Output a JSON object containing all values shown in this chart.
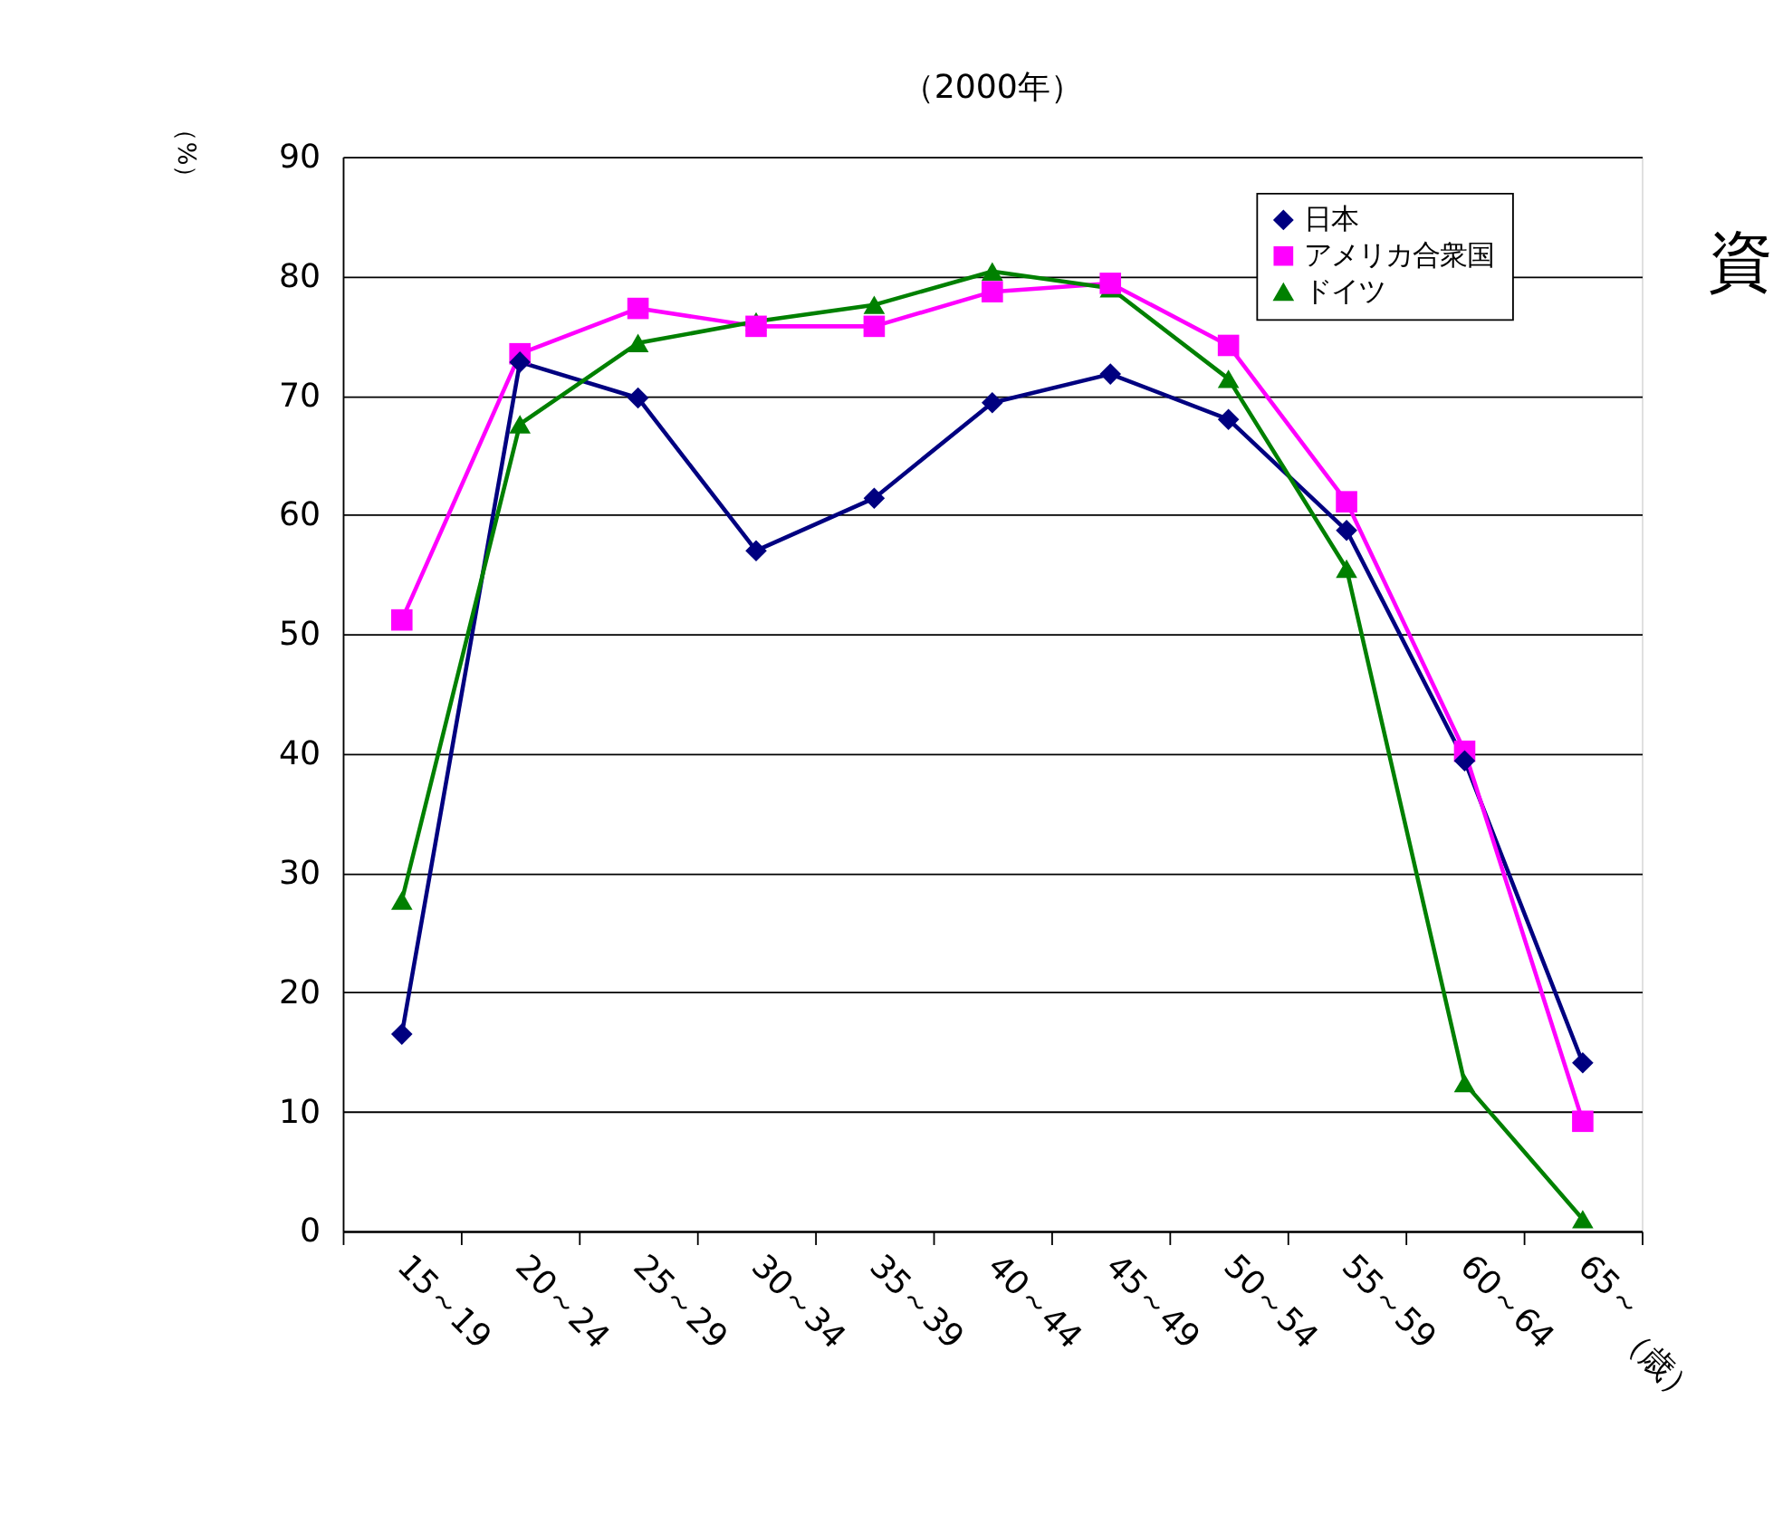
{
  "chart_data": {
    "type": "line",
    "title": "（2000年）",
    "ylabel": "（%）",
    "xlabel": "（歳）",
    "annotations": [
      "資"
    ],
    "categories": [
      "15～19",
      "20～24",
      "25～29",
      "30～34",
      "35～39",
      "40～44",
      "45～49",
      "50～54",
      "55～59",
      "60～64",
      "65～"
    ],
    "series": [
      {
        "name": "日本",
        "color": "#000080",
        "marker": "diamond",
        "values": [
          16.5,
          72.8,
          69.8,
          57,
          61.4,
          69.4,
          71.8,
          68,
          58.7,
          39.4,
          14.1
        ]
      },
      {
        "name": "アメリカ合衆国",
        "color": "#ff00ff",
        "marker": "square",
        "values": [
          51.2,
          73.5,
          77.3,
          75.8,
          75.8,
          78.7,
          79.4,
          74.2,
          61.1,
          40.2,
          9.2
        ]
      },
      {
        "name": "ドイツ",
        "color": "#008000",
        "marker": "triangle",
        "values": [
          27.7,
          67.6,
          74.4,
          76.2,
          77.6,
          80.4,
          79,
          71.4,
          55.5,
          12.4,
          1
        ]
      }
    ],
    "ylim": [
      0,
      90
    ],
    "yticks": [
      0,
      10,
      20,
      30,
      40,
      50,
      60,
      70,
      80,
      90
    ],
    "grid": "y",
    "legend": "top right",
    "line_style": "solid"
  }
}
